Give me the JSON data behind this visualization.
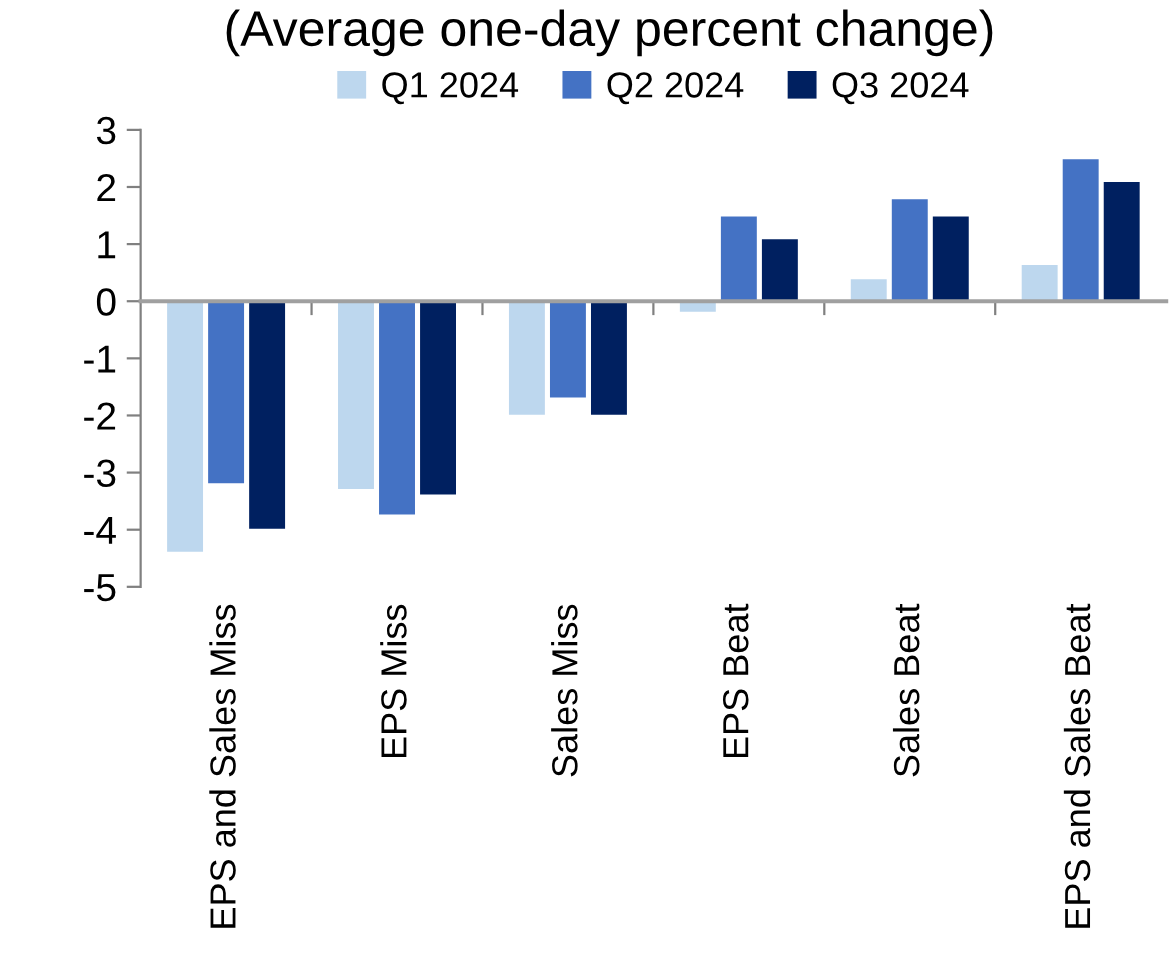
{
  "chart_data": {
    "type": "bar",
    "title": "(Average one-day percent change)",
    "categories": [
      "EPS and Sales Miss",
      "EPS Miss",
      "Sales Miss",
      "EPS Beat",
      "Sales Beat",
      "EPS and Sales Beat"
    ],
    "series": [
      {
        "name": "Q1 2024",
        "color": "#bdd7ee",
        "values": [
          -4.4,
          -3.3,
          -2.0,
          -0.2,
          0.4,
          0.65
        ]
      },
      {
        "name": "Q2 2024",
        "color": "#4472c4",
        "values": [
          -3.2,
          -3.75,
          -1.7,
          1.5,
          1.8,
          2.5
        ]
      },
      {
        "name": "Q3 2024",
        "color": "#002060",
        "values": [
          -4.0,
          -3.4,
          -2.0,
          1.1,
          1.5,
          2.1
        ]
      }
    ],
    "ylim": [
      -5,
      3
    ],
    "yticks": [
      -5,
      -4,
      -3,
      -2,
      -1,
      0,
      1,
      2,
      3
    ],
    "legend": "top"
  }
}
